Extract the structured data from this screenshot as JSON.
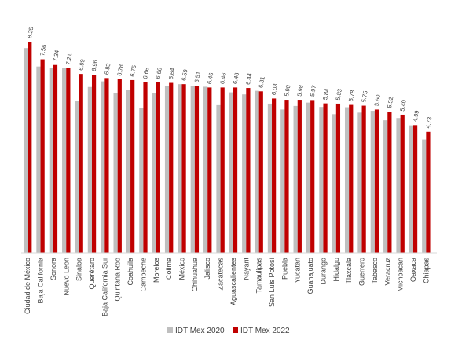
{
  "chart_data": {
    "type": "bar",
    "title": "",
    "xlabel": "",
    "ylabel": "",
    "ylim": [
      0,
      9
    ],
    "grid": false,
    "legend_position": "bottom",
    "colors": {
      "IDT Mex 2020": "#bfbfbf",
      "IDT Mex 2022": "#c00000"
    },
    "categories": [
      "Ciudad de México",
      "Baja California",
      "Sonora",
      "Nuevo León",
      "Sinaloa",
      "Querétaro",
      "Baja California Sur",
      "Quintana Roo",
      "Coahuila",
      "Campeche",
      "Morelos",
      "Colima",
      "México",
      "Chihuahua",
      "Jalisco",
      "Zacatecas",
      "Aguascalientes",
      "Nayarit",
      "Tamaulipas",
      "San Luis Potosí",
      "Puebla",
      "Yucatán",
      "Guanajuato",
      "Durango",
      "Hidalgo",
      "Tlaxcala",
      "Guerrero",
      "Tabasco",
      "Veracruz",
      "Michoacán",
      "Oaxaca",
      "Chiapas"
    ],
    "series": [
      {
        "name": "IDT Mex 2020",
        "values": [
          8.0,
          7.28,
          7.22,
          7.23,
          5.92,
          6.48,
          6.7,
          6.25,
          6.35,
          5.66,
          6.25,
          6.51,
          6.59,
          6.52,
          6.49,
          5.77,
          6.27,
          6.19,
          6.33,
          5.83,
          5.6,
          5.74,
          5.87,
          5.7,
          5.42,
          5.69,
          5.48,
          5.55,
          5.18,
          5.27,
          4.98,
          4.43
        ]
      },
      {
        "name": "IDT Mex 2022",
        "values": [
          8.25,
          7.56,
          7.34,
          7.21,
          6.99,
          6.96,
          6.83,
          6.78,
          6.75,
          6.66,
          6.66,
          6.64,
          6.59,
          6.51,
          6.46,
          6.46,
          6.46,
          6.44,
          6.31,
          6.03,
          5.98,
          5.98,
          5.97,
          5.84,
          5.83,
          5.78,
          5.75,
          5.6,
          5.52,
          5.4,
          4.99,
          4.73
        ]
      }
    ],
    "data_labels": [
      "8.25",
      "7.56",
      "7.34",
      "7.21",
      "6.99",
      "6.96",
      "6.83",
      "6.78",
      "6.75",
      "6.66",
      "6.66",
      "6.64",
      "6.59",
      "6.51",
      "6.46",
      "6.46",
      "6.46",
      "6.44",
      "6.31",
      "6.03",
      "5.98",
      "5.98",
      "5.97",
      "5.84",
      "5.83",
      "5.78",
      "5.75",
      "5.60",
      "5.52",
      "5.40",
      "4.99",
      "4.73"
    ]
  }
}
